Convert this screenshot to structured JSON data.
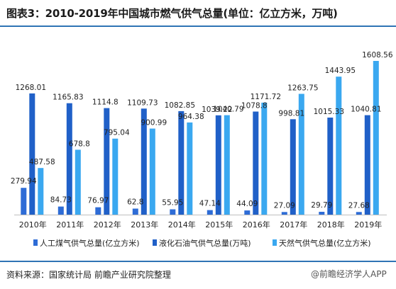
{
  "title": "图表3：2010-2019年中国城市燃气供气总量(单位：亿立方米，万吨)",
  "source": "资料来源：国家统计局 前瞻产业研究院整理",
  "watermark": "@前瞻经济学人APP",
  "colors": {
    "series1": "#2e6cd6",
    "series2": "#2060c8",
    "series3": "#3aa8f0"
  },
  "chart_data": {
    "type": "bar",
    "categories": [
      "2010年",
      "2011年",
      "2012年",
      "2013年",
      "2014年",
      "2015年",
      "2016年",
      "2017年",
      "2018年",
      "2019年"
    ],
    "series": [
      {
        "name": "人工煤气供气总量(亿立方米)",
        "values": [
          279.94,
          84.73,
          76.97,
          62.8,
          55.95,
          47.14,
          44.09,
          27.09,
          29.79,
          27.68
        ]
      },
      {
        "name": "液化石油气供气总量(万吨)",
        "values": [
          1268.01,
          1165.83,
          1114.8,
          1109.73,
          1082.85,
          1039.22,
          1078.8,
          998.81,
          1015.33,
          1040.81
        ]
      },
      {
        "name": "天然气供气总量(亿立方米)",
        "values": [
          487.58,
          678.8,
          795.04,
          900.99,
          964.38,
          1040.79,
          1171.72,
          1263.75,
          1443.95,
          1608.56
        ]
      }
    ],
    "value_labels": [
      [
        "279.94",
        "84.73",
        "76.97",
        "62.8",
        "55.95",
        "47.14",
        "44.09",
        "27.09",
        "29.79",
        "27.68"
      ],
      [
        "1268.01",
        "1165.83",
        "1114.8",
        "1109.73",
        "1082.85",
        "1039.22",
        "1078.8",
        "998.81",
        "1015.33",
        "1040.81"
      ],
      [
        "487.58",
        "678.8",
        "795.04",
        "900.99",
        "964.38",
        "1040.79",
        "1171.72",
        "1263.75",
        "1443.95",
        "1608.56"
      ]
    ],
    "ylim": [
      0,
      1608.56
    ],
    "legend_position": "bottom"
  }
}
